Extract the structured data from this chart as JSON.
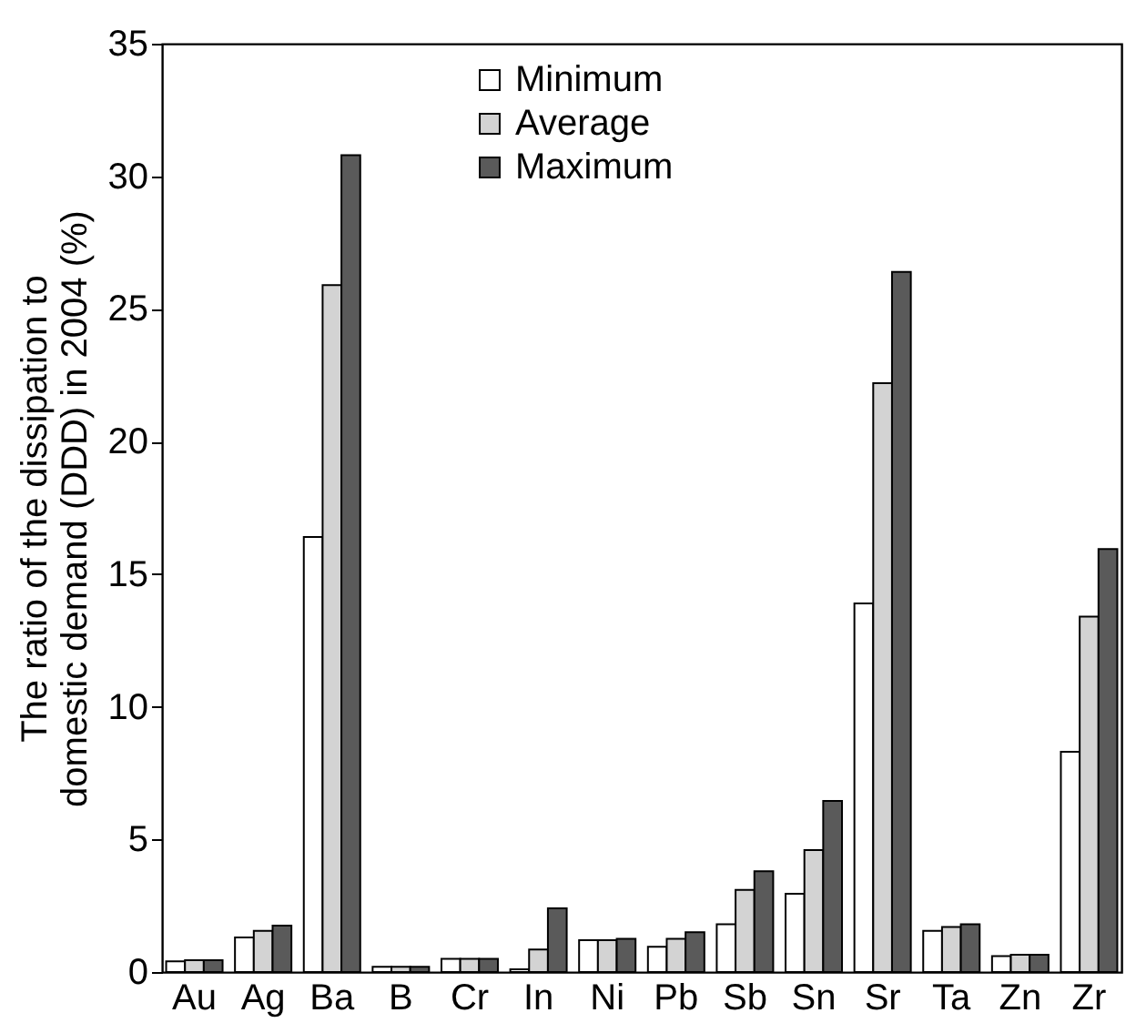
{
  "chart_data": {
    "type": "bar",
    "ylabel": "The ratio of the dissipation to domestic demand (DDD) in 2004 (%)",
    "categories": [
      "Au",
      "Ag",
      "Ba",
      "B",
      "Cr",
      "In",
      "Ni",
      "Pb",
      "Sb",
      "Sn",
      "Sr",
      "Ta",
      "Zn",
      "Zr"
    ],
    "series": [
      {
        "name": "Minimum",
        "color": "#ffffff",
        "values": [
          0.4,
          1.3,
          16.4,
          0.2,
          0.5,
          0.1,
          1.2,
          0.95,
          1.8,
          2.95,
          13.9,
          1.55,
          0.6,
          8.3
        ]
      },
      {
        "name": "Average",
        "color": "#d3d3d3",
        "values": [
          0.45,
          1.55,
          25.9,
          0.2,
          0.5,
          0.85,
          1.2,
          1.25,
          3.1,
          4.6,
          22.2,
          1.7,
          0.65,
          13.4
        ]
      },
      {
        "name": "Maximum",
        "color": "#5a5a5a",
        "values": [
          0.45,
          1.75,
          30.8,
          0.2,
          0.5,
          2.4,
          1.25,
          1.5,
          3.8,
          6.45,
          26.4,
          1.8,
          0.65,
          15.95
        ]
      }
    ],
    "ylim": [
      0,
      35
    ],
    "yticks": [
      0,
      5,
      10,
      15,
      20,
      25,
      30,
      35
    ],
    "legend": "top",
    "grid": false
  }
}
